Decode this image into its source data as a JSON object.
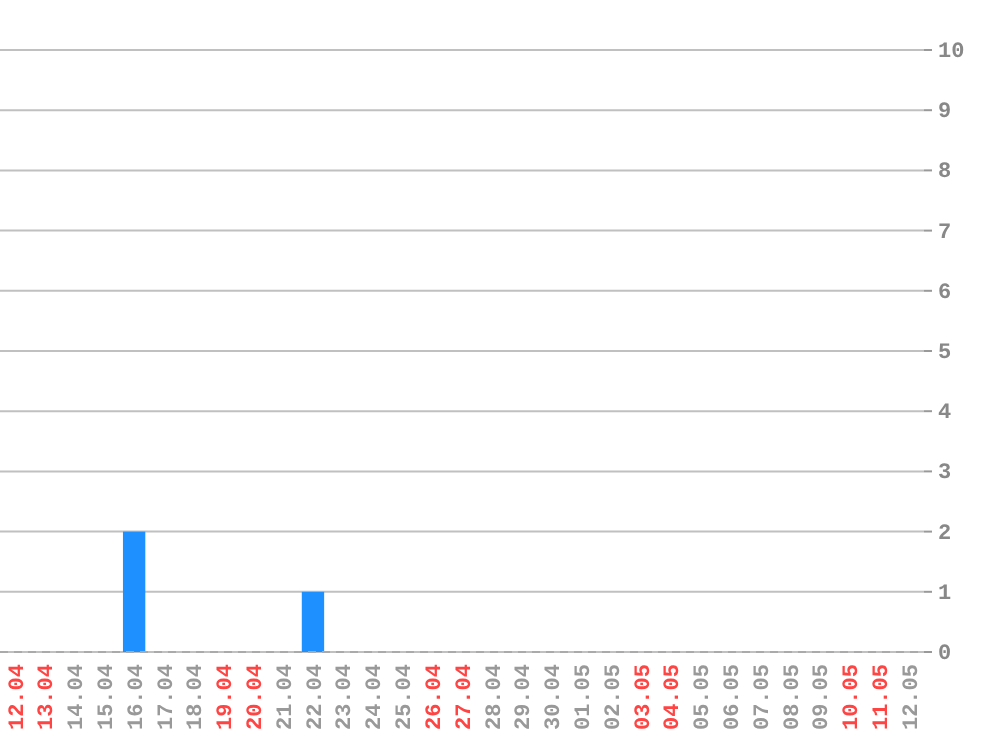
{
  "chart_data": {
    "type": "bar",
    "categories": [
      "12.04",
      "13.04",
      "14.04",
      "15.04",
      "16.04",
      "17.04",
      "18.04",
      "19.04",
      "20.04",
      "21.04",
      "22.04",
      "23.04",
      "24.04",
      "25.04",
      "26.04",
      "27.04",
      "28.04",
      "29.04",
      "30.04",
      "01.05",
      "02.05",
      "03.05",
      "04.05",
      "05.05",
      "06.05",
      "07.05",
      "08.05",
      "09.05",
      "10.05",
      "11.05",
      "12.05"
    ],
    "values": [
      0,
      0,
      0,
      0,
      2,
      0,
      0,
      0,
      0,
      0,
      1,
      0,
      0,
      0,
      0,
      0,
      0,
      0,
      0,
      0,
      0,
      0,
      0,
      0,
      0,
      0,
      0,
      0,
      0,
      0,
      0
    ],
    "color": "#1e90ff",
    "ylim": [
      0,
      10
    ],
    "yticks": [
      0,
      1,
      2,
      3,
      4,
      5,
      6,
      7,
      8,
      9,
      10
    ],
    "grid": "y"
  }
}
